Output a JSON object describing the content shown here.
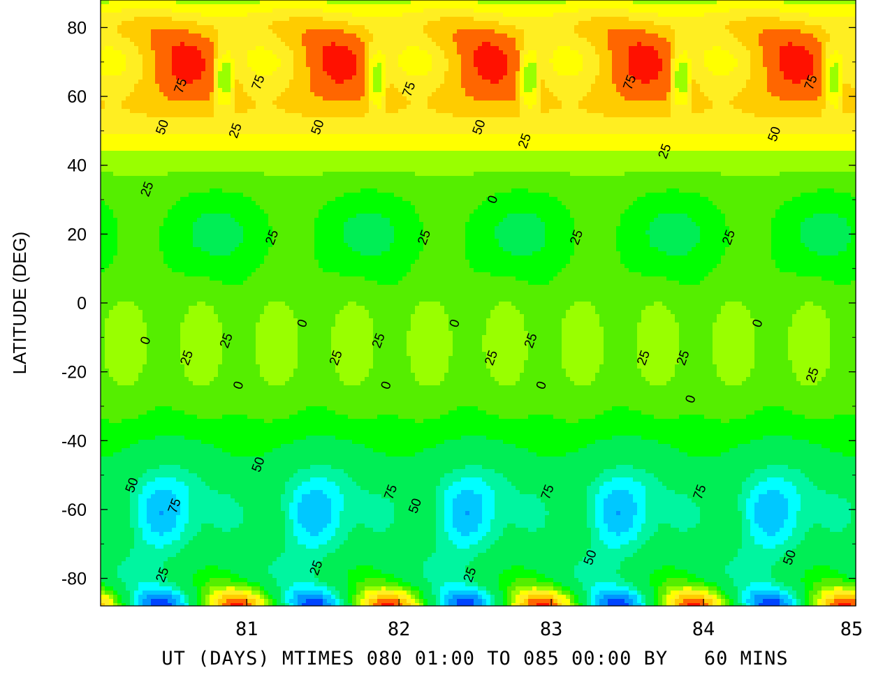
{
  "chart_data": {
    "type": "heatmap",
    "subtype": "filled-contour",
    "title": "",
    "xlabel": "UT (DAYS) MTIMES 080 01:00 TO 085 00:00 BY   60 MINS",
    "ylabel": "LATITUDE (DEG)",
    "xlim": [
      80.04,
      85.0
    ],
    "ylim": [
      -88,
      88
    ],
    "xticks": [
      81,
      82,
      83,
      84,
      85
    ],
    "xtick_labels": [
      "81",
      "82",
      "83",
      "84",
      "85"
    ],
    "yticks": [
      80,
      60,
      40,
      20,
      0,
      -20,
      -40,
      -60,
      -80
    ],
    "ytick_labels": [
      "80",
      "60",
      "40",
      "20",
      "0",
      "-20",
      "-40",
      "-60",
      "-80"
    ],
    "grid": false,
    "legend": "none",
    "contour_interval": 12.5,
    "negative_contours_dashed": true,
    "contour_labels": [
      {
        "text": "75",
        "x": 80.57,
        "y": 63
      },
      {
        "text": "75",
        "x": 81.08,
        "y": 64
      },
      {
        "text": "75",
        "x": 82.07,
        "y": 62
      },
      {
        "text": "75",
        "x": 83.52,
        "y": 64
      },
      {
        "text": "75",
        "x": 84.71,
        "y": 64
      },
      {
        "text": "50",
        "x": 80.45,
        "y": 51
      },
      {
        "text": "50",
        "x": 81.47,
        "y": 51
      },
      {
        "text": "50",
        "x": 82.53,
        "y": 51
      },
      {
        "text": "50",
        "x": 84.47,
        "y": 49
      },
      {
        "text": "25",
        "x": 80.35,
        "y": 33
      },
      {
        "text": "25",
        "x": 80.93,
        "y": 50
      },
      {
        "text": "25",
        "x": 82.83,
        "y": 47
      },
      {
        "text": "25",
        "x": 83.75,
        "y": 44
      },
      {
        "text": "0",
        "x": 82.62,
        "y": 30
      },
      {
        "text": "25",
        "x": 81.17,
        "y": 19
      },
      {
        "text": "25",
        "x": 82.17,
        "y": 19
      },
      {
        "text": "25",
        "x": 83.17,
        "y": 19
      },
      {
        "text": "25",
        "x": 84.17,
        "y": 19
      },
      {
        "text": "0",
        "x": 80.34,
        "y": -11
      },
      {
        "text": "25",
        "x": 80.61,
        "y": -16
      },
      {
        "text": "25",
        "x": 80.87,
        "y": -11
      },
      {
        "text": "0",
        "x": 81.37,
        "y": -6
      },
      {
        "text": "25",
        "x": 81.59,
        "y": -16
      },
      {
        "text": "25",
        "x": 81.87,
        "y": -11
      },
      {
        "text": "0",
        "x": 82.37,
        "y": -6
      },
      {
        "text": "25",
        "x": 82.61,
        "y": -16
      },
      {
        "text": "25",
        "x": 82.87,
        "y": -11
      },
      {
        "text": "0",
        "x": 84.36,
        "y": -6
      },
      {
        "text": "25",
        "x": 83.61,
        "y": -16
      },
      {
        "text": "25",
        "x": 83.87,
        "y": -16
      },
      {
        "text": "25",
        "x": 84.72,
        "y": -21
      },
      {
        "text": "0",
        "x": 80.95,
        "y": -24
      },
      {
        "text": "0",
        "x": 81.92,
        "y": -24
      },
      {
        "text": "0",
        "x": 82.94,
        "y": -24
      },
      {
        "text": "0",
        "x": 83.92,
        "y": -28
      },
      {
        "text": "50",
        "x": 80.25,
        "y": -53
      },
      {
        "text": "50",
        "x": 81.08,
        "y": -47
      },
      {
        "text": "75",
        "x": 80.53,
        "y": -59
      },
      {
        "text": "75",
        "x": 81.95,
        "y": -55
      },
      {
        "text": "50",
        "x": 82.11,
        "y": -59
      },
      {
        "text": "75",
        "x": 82.98,
        "y": -55
      },
      {
        "text": "75",
        "x": 83.98,
        "y": -55
      },
      {
        "text": "50",
        "x": 83.26,
        "y": -74
      },
      {
        "text": "50",
        "x": 84.57,
        "y": -74
      },
      {
        "text": "25",
        "x": 80.45,
        "y": -79
      },
      {
        "text": "25",
        "x": 81.46,
        "y": -77
      },
      {
        "text": "25",
        "x": 82.47,
        "y": -79
      }
    ]
  }
}
